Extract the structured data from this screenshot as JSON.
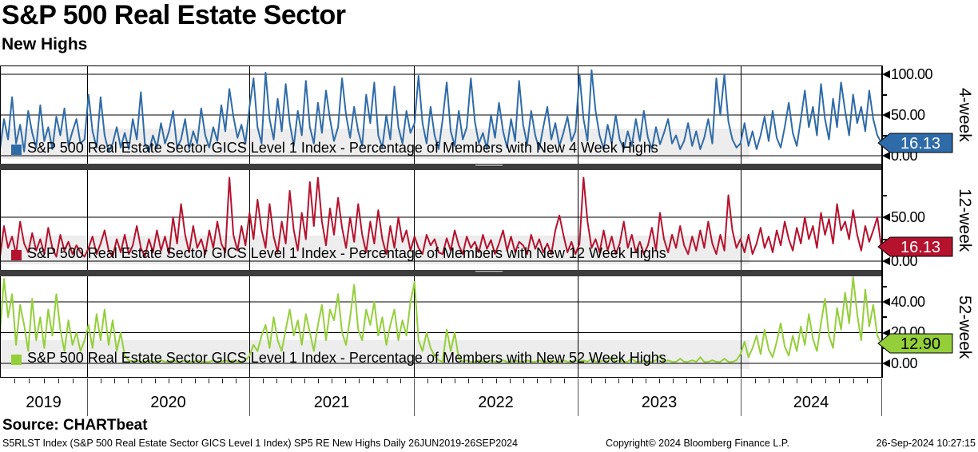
{
  "header": {
    "title": "S&P 500 Real Estate Sector",
    "subtitle": "New Highs"
  },
  "source_line": "Source: CHARTbeat",
  "footer": {
    "left": "S5RLST Index (S&P 500 Real Estate Sector GICS Level 1 Index) SP5 RE New Highs  Daily 26JUN2019-26SEP2024",
    "center": "Copyright© 2024 Bloomberg Finance L.P.",
    "right": "26-Sep-2024 10:27:15"
  },
  "x_axis": {
    "years": [
      "2019",
      "2020",
      "2021",
      "2022",
      "2023",
      "2024"
    ],
    "range": "26JUN2019-26SEP2024",
    "frequency": "Daily"
  },
  "chart_data": [
    {
      "type": "line",
      "panel": "4-week",
      "color": "#2e6ba8",
      "legend": "S&P 500 Real Estate Sector GICS Level 1 Index - Percentage of Members with New 4 Week Highs",
      "ylim": [
        0,
        110
      ],
      "y_ticks": [
        {
          "value": 0,
          "label": "0.00"
        },
        {
          "value": 50,
          "label": "50.00"
        },
        {
          "value": 100,
          "label": "100.00"
        }
      ],
      "y_minor_ticks": [
        25,
        75
      ],
      "last": {
        "label": "16.13",
        "value": 16.13,
        "text_color": "#ffffff"
      },
      "values": [
        8,
        45,
        20,
        72,
        15,
        38,
        5,
        55,
        28,
        10,
        62,
        18,
        35,
        8,
        48,
        25,
        58,
        12,
        30,
        45,
        15,
        20,
        75,
        30,
        10,
        72,
        25,
        5,
        15,
        35,
        10,
        28,
        8,
        45,
        20,
        78,
        15,
        5,
        25,
        10,
        40,
        15,
        30,
        55,
        10,
        20,
        45,
        8,
        30,
        15,
        58,
        25,
        10,
        35,
        18,
        62,
        30,
        82,
        48,
        22,
        38,
        15,
        60,
        95,
        35,
        15,
        102,
        45,
        20,
        70,
        30,
        88,
        40,
        12,
        55,
        25,
        92,
        35,
        15,
        65,
        28,
        80,
        45,
        18,
        35,
        95,
        50,
        22,
        60,
        30,
        12,
        75,
        40,
        90,
        25,
        10,
        50,
        20,
        85,
        35,
        15,
        55,
        28,
        40,
        98,
        40,
        15,
        60,
        25,
        8,
        45,
        90,
        30,
        12,
        55,
        20,
        35,
        95,
        42,
        15,
        28,
        8,
        50,
        22,
        65,
        30,
        10,
        45,
        18,
        92,
        38,
        14,
        55,
        25,
        8,
        35,
        60,
        20,
        40,
        12,
        28,
        48,
        18,
        30,
        100,
        45,
        18,
        105,
        55,
        25,
        8,
        38,
        15,
        50,
        20,
        8,
        30,
        12,
        45,
        18,
        55,
        22,
        8,
        35,
        14,
        28,
        45,
        15,
        25,
        8,
        18,
        40,
        12,
        30,
        8,
        22,
        45,
        15,
        95,
        50,
        100,
        42,
        20,
        10,
        15,
        40,
        12,
        30,
        8,
        25,
        48,
        18,
        55,
        22,
        10,
        35,
        65,
        28,
        12,
        45,
        80,
        35,
        60,
        25,
        88,
        45,
        20,
        70,
        35,
        90,
        55,
        25,
        75,
        40,
        60,
        30,
        80,
        45,
        25,
        16.13
      ]
    },
    {
      "type": "line",
      "panel": "12-week",
      "color": "#b5122e",
      "legend": "S&P 500 Real Estate Sector GICS Level 1 Index - Percentage of Members with New 12 Week Highs",
      "ylim": [
        0,
        103
      ],
      "y_ticks": [
        {
          "value": 0,
          "label": "0.00"
        },
        {
          "value": 50,
          "label": "50.00"
        }
      ],
      "y_minor_ticks": [
        25,
        75
      ],
      "last": {
        "label": "16.13",
        "value": 16.13,
        "text_color": "#ffffff"
      },
      "values": [
        5,
        40,
        15,
        28,
        8,
        45,
        20,
        10,
        32,
        12,
        25,
        8,
        38,
        15,
        5,
        30,
        12,
        22,
        8,
        18,
        10,
        5,
        15,
        28,
        8,
        20,
        35,
        12,
        5,
        25,
        10,
        30,
        8,
        18,
        40,
        15,
        5,
        25,
        10,
        35,
        12,
        28,
        8,
        50,
        20,
        65,
        30,
        10,
        40,
        15,
        25,
        8,
        35,
        15,
        45,
        20,
        10,
        95,
        30,
        12,
        40,
        18,
        55,
        25,
        70,
        35,
        15,
        65,
        28,
        10,
        45,
        20,
        80,
        35,
        12,
        55,
        25,
        90,
        40,
        95,
        45,
        18,
        60,
        30,
        72,
        38,
        15,
        50,
        22,
        65,
        30,
        10,
        45,
        20,
        58,
        25,
        8,
        40,
        15,
        50,
        22,
        35,
        12,
        28,
        15,
        8,
        30,
        18,
        25,
        10,
        8,
        26,
        12,
        35,
        18,
        8,
        28,
        15,
        22,
        10,
        30,
        14,
        24,
        8,
        20,
        35,
        12,
        28,
        10,
        22,
        18,
        8,
        30,
        14,
        25,
        10,
        20,
        8,
        35,
        52,
        30,
        10,
        22,
        8,
        20,
        95,
        45,
        15,
        25,
        10,
        35,
        12,
        28,
        8,
        20,
        45,
        15,
        30,
        10,
        22,
        8,
        18,
        38,
        12,
        55,
        25,
        10,
        30,
        15,
        40,
        18,
        8,
        28,
        12,
        35,
        15,
        45,
        20,
        8,
        30,
        12,
        75,
        35,
        15,
        25,
        10,
        30,
        8,
        20,
        38,
        15,
        28,
        10,
        35,
        18,
        45,
        25,
        12,
        38,
        20,
        50,
        25,
        40,
        15,
        55,
        30,
        48,
        20,
        65,
        35,
        45,
        25,
        58,
        30,
        12,
        40,
        22,
        35,
        50,
        16.13
      ]
    },
    {
      "type": "line",
      "panel": "52-week",
      "color": "#94cf3a",
      "legend": "S&P 500 Real Estate Sector GICS Level 1 Index - Percentage of Members with New 52 Week Highs",
      "ylim": [
        0,
        57
      ],
      "y_ticks": [
        {
          "value": 0,
          "label": "0.00"
        },
        {
          "value": 20,
          "label": "20.00"
        },
        {
          "value": 40,
          "label": "40.00"
        }
      ],
      "y_minor_ticks": [
        10,
        30,
        50
      ],
      "last": {
        "label": "12.90",
        "value": 12.9,
        "text_color": "#000000"
      },
      "values": [
        20,
        55,
        30,
        45,
        12,
        38,
        25,
        8,
        42,
        15,
        30,
        10,
        35,
        18,
        45,
        22,
        8,
        28,
        12,
        20,
        8,
        15,
        25,
        10,
        32,
        15,
        35,
        12,
        28,
        8,
        20,
        5,
        2,
        1,
        2,
        1,
        1,
        2,
        1,
        1,
        2,
        1,
        1,
        2,
        1,
        1,
        2,
        1,
        1,
        2,
        1,
        1,
        1,
        2,
        1,
        1,
        2,
        1,
        2,
        1,
        1,
        2,
        5,
        12,
        8,
        18,
        25,
        10,
        30,
        15,
        8,
        22,
        35,
        18,
        28,
        12,
        32,
        20,
        8,
        25,
        38,
        15,
        35,
        28,
        45,
        20,
        12,
        30,
        51,
        22,
        15,
        35,
        25,
        40,
        18,
        30,
        12,
        25,
        35,
        15,
        28,
        18,
        40,
        53,
        15,
        8,
        20,
        10,
        5,
        2,
        1,
        22,
        8,
        20,
        3,
        1,
        2,
        1,
        1,
        2,
        1,
        1,
        2,
        1,
        1,
        2,
        1,
        1,
        2,
        1,
        1,
        2,
        1,
        1,
        2,
        1,
        1,
        2,
        1,
        1,
        2,
        1,
        1,
        2,
        1,
        2,
        1,
        3,
        1,
        1,
        2,
        1,
        4,
        1,
        2,
        1,
        1,
        3,
        1,
        1,
        2,
        1,
        1,
        2,
        5,
        1,
        2,
        1,
        1,
        3,
        1,
        1,
        2,
        1,
        4,
        1,
        1,
        2,
        1,
        1,
        3,
        1,
        1,
        2,
        6,
        14,
        4,
        10,
        18,
        6,
        22,
        9,
        4,
        14,
        26,
        11,
        5,
        18,
        8,
        24,
        12,
        32,
        16,
        8,
        26,
        42,
        18,
        10,
        36,
        22,
        46,
        26,
        56,
        32,
        15,
        48,
        24,
        38,
        18,
        12.9
      ]
    }
  ]
}
